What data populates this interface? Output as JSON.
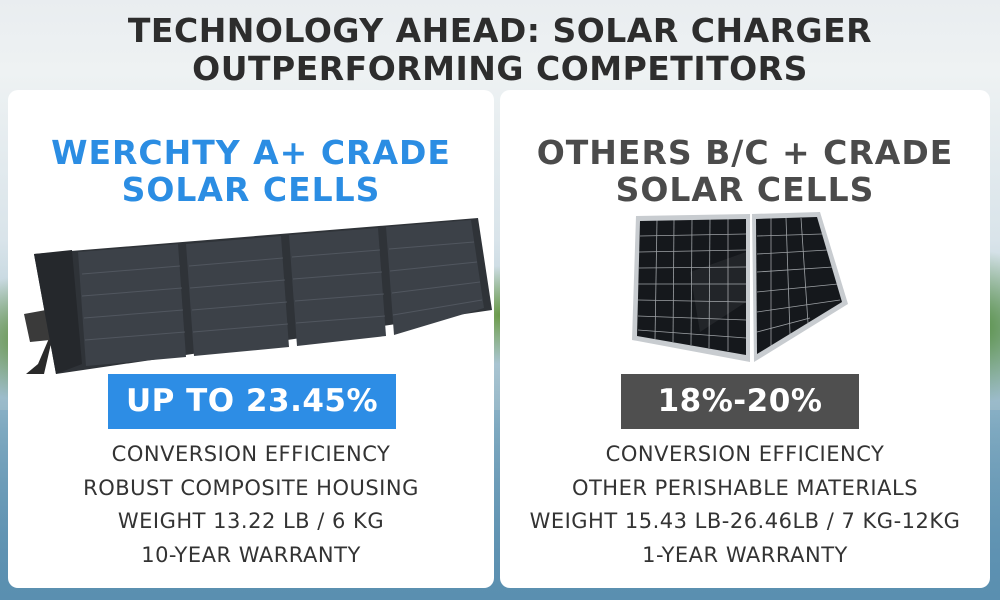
{
  "headline": {
    "line1": "TECHNOLOGY AHEAD: SOLAR CHARGER",
    "line2": "OUTPERFORMING COMPETITORS"
  },
  "cards": [
    {
      "heading_line1": "WERCHTY A+ CRADE",
      "heading_line2": "SOLAR CELLS",
      "badge": "UP TO 23.45%",
      "features": [
        "CONVERSION EFFICIENCY",
        "ROBUST COMPOSITE HOUSING",
        "WEIGHT 13.22 LB / 6 KG",
        "10-YEAR WARRANTY"
      ],
      "accent_color": "#2d8de5"
    },
    {
      "heading_line1": "OTHERS B/C + CRADE",
      "heading_line2": "SOLAR CELLS",
      "badge": "18%-20%",
      "features": [
        "CONVERSION EFFICIENCY",
        "OTHER PERISHABLE MATERIALS",
        "WEIGHT 15.43 LB-26.46LB / 7 KG-12KG",
        "1-YEAR WARRANTY"
      ],
      "accent_color": "#4f4f4f"
    }
  ],
  "icons": {
    "left_product": "foldable-solar-panel-image",
    "right_product": "rigid-solar-panel-image"
  }
}
